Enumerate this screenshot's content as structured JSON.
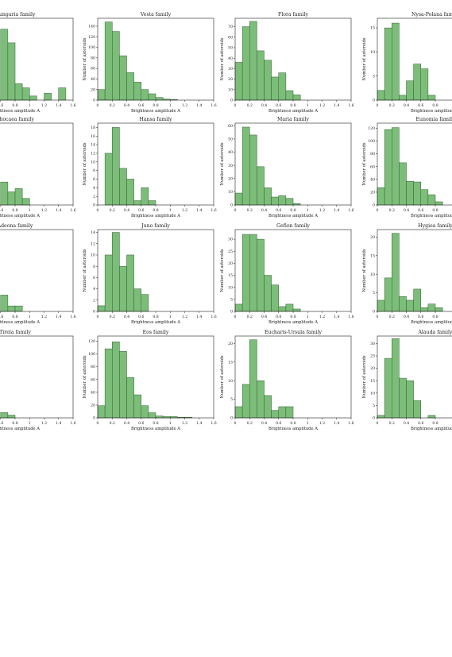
{
  "figure": {
    "xlabel": "Brightness amplitude A",
    "ylabel": "Number of asteroids"
  },
  "chart_data": [
    {
      "type": "bar",
      "title": "Hungaria family",
      "xlim": [
        0,
        1.6
      ],
      "ylim": [
        0,
        60
      ],
      "bin_width": 0.1,
      "xticks": [
        0,
        0.2,
        0.4,
        0.6,
        0.8,
        1.0,
        1.2,
        1.4,
        1.6
      ],
      "yticks": [],
      "values": [
        0,
        0,
        0,
        0,
        0,
        0,
        52,
        42,
        12,
        9,
        3,
        0,
        5,
        0,
        9,
        0
      ]
    },
    {
      "type": "bar",
      "title": "Vesta family",
      "xlim": [
        0,
        1.6
      ],
      "ylim": [
        0,
        155
      ],
      "bin_width": 0.1,
      "xticks": [
        0,
        0.2,
        0.4,
        0.6,
        0.8,
        1.0,
        1.2,
        1.4,
        1.6
      ],
      "yticks": [
        0,
        20,
        40,
        60,
        80,
        100,
        120,
        140
      ],
      "values": [
        20,
        148,
        130,
        84,
        52,
        34,
        20,
        12,
        5,
        2,
        1,
        0,
        0,
        0,
        0,
        0
      ]
    },
    {
      "type": "bar",
      "title": "Flora family",
      "xlim": [
        0,
        1.6
      ],
      "ylim": [
        0,
        78
      ],
      "bin_width": 0.1,
      "xticks": [
        0,
        0.2,
        0.4,
        0.6,
        0.8,
        1.0,
        1.2,
        1.4,
        1.6
      ],
      "yticks": [
        0,
        10,
        20,
        30,
        40,
        50,
        60,
        70
      ],
      "values": [
        36,
        70,
        75,
        47,
        38,
        22,
        26,
        9,
        5,
        0,
        0,
        0,
        0,
        0,
        0,
        0
      ]
    },
    {
      "type": "bar",
      "title": "Nysa-Polana family",
      "xlim": [
        0,
        1.6
      ],
      "ylim": [
        0,
        17
      ],
      "bin_width": 0.1,
      "xticks": [
        0,
        0.2,
        0.4,
        0.6,
        0.8
      ],
      "yticks": [
        0,
        5,
        10,
        15
      ],
      "values": [
        2,
        15,
        16,
        1,
        4,
        7.5,
        6.5,
        1,
        0
      ]
    },
    {
      "type": "bar",
      "title": "Phocaea family",
      "xlim": [
        0,
        1.6
      ],
      "ylim": [
        0,
        25
      ],
      "bin_width": 0.1,
      "xticks": [
        0,
        0.2,
        0.4,
        0.6,
        0.8,
        1.0,
        1.2,
        1.4,
        1.6
      ],
      "yticks": [],
      "values": [
        0,
        0,
        0,
        0,
        0,
        0,
        7,
        4,
        5,
        2,
        0,
        0,
        0,
        0,
        0,
        0
      ]
    },
    {
      "type": "bar",
      "title": "Hansa family",
      "xlim": [
        0,
        1.6
      ],
      "ylim": [
        0,
        19
      ],
      "bin_width": 0.1,
      "xticks": [
        0,
        0.2,
        0.4,
        0.6,
        0.8,
        1.0,
        1.2,
        1.4,
        1.6
      ],
      "yticks": [
        0,
        2,
        4,
        6,
        8,
        10,
        12,
        14,
        16,
        18
      ],
      "values": [
        0,
        12,
        18,
        8.5,
        6,
        1,
        4,
        1,
        0,
        0,
        0,
        0,
        0,
        0,
        0,
        0
      ]
    },
    {
      "type": "bar",
      "title": "Maria family",
      "xlim": [
        0,
        1.6
      ],
      "ylim": [
        0,
        62
      ],
      "bin_width": 0.1,
      "xticks": [
        0,
        0.2,
        0.4,
        0.6,
        0.8,
        1.0,
        1.2,
        1.4,
        1.6
      ],
      "yticks": [
        0,
        10,
        20,
        30,
        40,
        50,
        60
      ],
      "values": [
        9,
        59,
        53,
        29,
        13,
        6,
        7,
        5,
        1,
        0,
        0,
        0,
        0,
        0,
        0,
        0
      ]
    },
    {
      "type": "bar",
      "title": "Eunomia family",
      "xlim": [
        0,
        1.6
      ],
      "ylim": [
        0,
        128
      ],
      "bin_width": 0.1,
      "xticks": [
        0,
        0.2,
        0.4,
        0.6,
        0.8
      ],
      "yticks": [
        0,
        20,
        40,
        60,
        80,
        100,
        120
      ],
      "values": [
        27,
        118,
        121,
        66,
        37,
        36,
        24,
        16,
        5
      ]
    },
    {
      "type": "bar",
      "title": "Gefion family? (Adeona family)",
      "display_title": "Adeona family",
      "xlim": [
        0,
        1.6
      ],
      "ylim": [
        0,
        15
      ],
      "bin_width": 0.1,
      "xticks": [
        0,
        0.2,
        0.4,
        0.6,
        0.8,
        1.0,
        1.2,
        1.4,
        1.6
      ],
      "yticks": [],
      "values": [
        0,
        0,
        0,
        0,
        0,
        0,
        3,
        1,
        1,
        0,
        0,
        0,
        0,
        0,
        0,
        0
      ]
    },
    {
      "type": "bar",
      "title": "Juno family",
      "xlim": [
        0,
        1.6
      ],
      "ylim": [
        0,
        14.5
      ],
      "bin_width": 0.1,
      "xticks": [
        0,
        0.2,
        0.4,
        0.6,
        0.8,
        1.0,
        1.2,
        1.4,
        1.6
      ],
      "yticks": [
        0,
        2,
        4,
        6,
        8,
        10,
        12,
        14
      ],
      "values": [
        1,
        10,
        14,
        8,
        10,
        4,
        3,
        0,
        0,
        0,
        0,
        0,
        0,
        0,
        0,
        0
      ]
    },
    {
      "type": "bar",
      "title": "Gefion family",
      "xlim": [
        0,
        1.6
      ],
      "ylim": [
        0,
        34
      ],
      "bin_width": 0.1,
      "xticks": [
        0,
        0.2,
        0.4,
        0.6,
        0.8,
        1.0,
        1.2,
        1.4,
        1.6
      ],
      "yticks": [
        0,
        5,
        10,
        15,
        20,
        25,
        30
      ],
      "values": [
        3,
        32,
        32,
        30,
        15,
        11,
        2,
        3,
        1,
        0,
        0,
        0,
        0,
        0,
        0,
        0
      ]
    },
    {
      "type": "bar",
      "title": "Hygiea family",
      "xlim": [
        0,
        1.6
      ],
      "ylim": [
        0,
        22
      ],
      "bin_width": 0.1,
      "xticks": [
        0,
        0.2,
        0.4,
        0.6,
        0.8
      ],
      "yticks": [
        0,
        5,
        10,
        15,
        20
      ],
      "values": [
        3,
        9,
        21,
        4,
        3,
        6,
        1,
        2,
        1
      ]
    },
    {
      "type": "bar",
      "title": "Tirela family",
      "xlim": [
        0,
        1.6
      ],
      "ylim": [
        0,
        30
      ],
      "bin_width": 0.1,
      "xticks": [
        0,
        0.2,
        0.4,
        0.6,
        0.8,
        1.0,
        1.2,
        1.4,
        1.6
      ],
      "yticks": [],
      "values": [
        0,
        0,
        0,
        0,
        0,
        0,
        2,
        1,
        0,
        0,
        0,
        0,
        0,
        0,
        0,
        0
      ]
    },
    {
      "type": "bar",
      "title": "Eos family",
      "xlim": [
        0,
        1.6
      ],
      "ylim": [
        0,
        128
      ],
      "bin_width": 0.1,
      "xticks": [
        0,
        0.2,
        0.4,
        0.6,
        0.8,
        1.0,
        1.2,
        1.4,
        1.6
      ],
      "yticks": [
        0,
        20,
        40,
        60,
        80,
        100,
        120
      ],
      "values": [
        19,
        108,
        119,
        104,
        63,
        36,
        19,
        8,
        3,
        2,
        2,
        1,
        1,
        0,
        0,
        0
      ]
    },
    {
      "type": "bar",
      "title": "Eucharis-Ursula family",
      "xlim": [
        0,
        1.6
      ],
      "ylim": [
        0,
        22
      ],
      "bin_width": 0.1,
      "xticks": [
        0,
        0.2,
        0.4,
        0.6,
        0.8,
        1.0,
        1.2,
        1.4,
        1.6
      ],
      "yticks": [
        0,
        5,
        10,
        15,
        20
      ],
      "values": [
        3,
        9,
        21,
        10,
        6,
        2,
        3,
        3,
        0,
        0,
        0,
        0,
        0,
        0,
        0,
        0
      ]
    },
    {
      "type": "bar",
      "title": "Alauda family",
      "xlim": [
        0,
        1.6
      ],
      "ylim": [
        0,
        33
      ],
      "bin_width": 0.1,
      "xticks": [
        0,
        0.2,
        0.4,
        0.6,
        0.8
      ],
      "yticks": [
        0,
        5,
        10,
        15,
        20,
        25,
        30
      ],
      "values": [
        1,
        24,
        32,
        16,
        15,
        7,
        0,
        1,
        0
      ]
    }
  ]
}
